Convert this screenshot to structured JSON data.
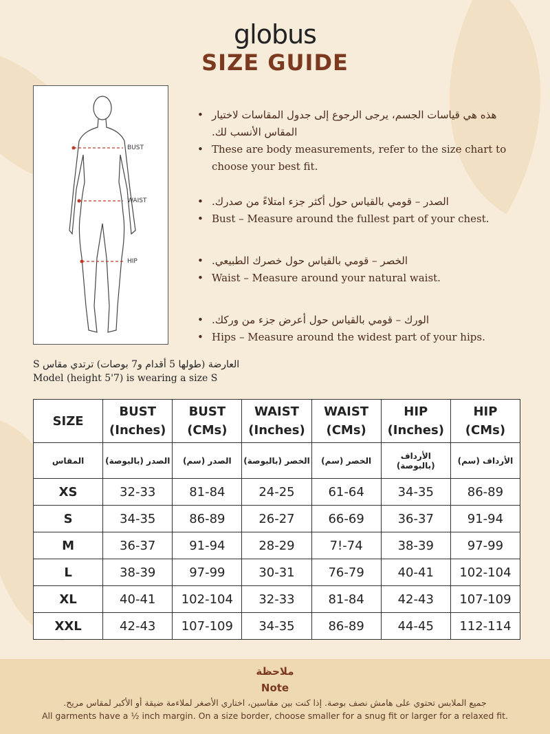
{
  "logo": "globus",
  "title": "SIZE GUIDE",
  "figure": {
    "labels": [
      "BUST",
      "WAIST",
      "HIP"
    ],
    "marker_color": "#c0392b"
  },
  "bullets": [
    {
      "ar": "هذه هي قياسات الجسم، يرجى الرجوع إلى جدول المقاسات لاختيار المقاس الأنسب لك.",
      "en": "These are body measurements, refer to the size chart to choose your best fit."
    },
    {
      "ar": "الصدر – قومي بالقياس حول أكثر جزء امتلاءً من صدرك.",
      "en": "Bust – Measure around the fullest part of your chest."
    },
    {
      "ar": "الخصر – قومي بالقياس حول خصرك الطبيعي.",
      "en": "Waist – Measure around your natural waist."
    },
    {
      "ar": "الورك – قومي بالقياس حول أعرض جزء من وركك.",
      "en": "Hips – Measure around the widest part of your hips."
    }
  ],
  "model": {
    "ar": "العارضة (طولها 5 أقدام و7 بوصات) ترتدي مقاس S",
    "en": "Model (height 5'7) is wearing a size S"
  },
  "table": {
    "headers": [
      [
        "SIZE"
      ],
      [
        "BUST",
        "(Inches)"
      ],
      [
        "BUST",
        "(CMs)"
      ],
      [
        "WAIST",
        "(Inches)"
      ],
      [
        "WAIST",
        "(CMs)"
      ],
      [
        "HIP",
        "(Inches)"
      ],
      [
        "HIP",
        "(CMs)"
      ]
    ],
    "headers_ar": [
      "المقاس",
      "الصدر (بالبوصة)",
      "الصدر (سم)",
      "الخصر (بالبوصة)",
      "الخصر (سم)",
      "الأرداف (بالبوصة)",
      "الأرداف (سم)"
    ],
    "rows": [
      [
        "XS",
        "32-33",
        "81-84",
        "24-25",
        "61-64",
        "34-35",
        "86-89"
      ],
      [
        "S",
        "34-35",
        "86-89",
        "26-27",
        "66-69",
        "36-37",
        "91-94"
      ],
      [
        "M",
        "36-37",
        "91-94",
        "28-29",
        "7!-74",
        "38-39",
        "97-99"
      ],
      [
        "L",
        "38-39",
        "97-99",
        "30-31",
        "76-79",
        "40-41",
        "102-104"
      ],
      [
        "XL",
        "40-41",
        "102-104",
        "32-33",
        "81-84",
        "42-43",
        "107-109"
      ],
      [
        "XXL",
        "42-43",
        "107-109",
        "34-35",
        "86-89",
        "44-45",
        "112-114"
      ]
    ]
  },
  "note": {
    "title_ar": "ملاحظة",
    "title_en": "Note",
    "body_ar": "جميع الملابس تحتوي على هامش نصف بوصة. إذا كنت بين مقاسين، اختاري الأصغر لملاءمة ضيقة أو الأكبر لمقاس مريح.",
    "body_en": "All garments have a ½ inch margin. On a size border, choose smaller for a snug fit or larger for a relaxed fit."
  },
  "colors": {
    "brand": "#7b3a1f",
    "background": "#f7ecd9",
    "note_band": "#efd9b2"
  }
}
